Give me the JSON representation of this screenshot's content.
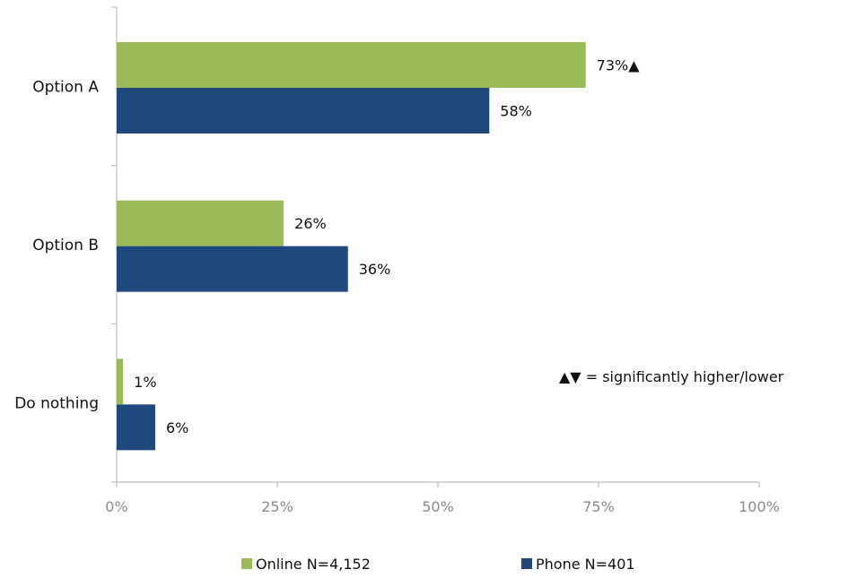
{
  "chart_data": {
    "type": "bar",
    "orientation": "horizontal",
    "categories": [
      "Option A",
      "Option B",
      "Do nothing"
    ],
    "series": [
      {
        "name": "Online N=4,152",
        "color": "#9bbb59",
        "values": [
          73,
          26,
          1
        ],
        "labels": [
          "73%▲",
          "26%",
          "1%"
        ]
      },
      {
        "name": "Phone N=401",
        "color": "#1f497d",
        "values": [
          58,
          36,
          6
        ],
        "labels": [
          "58%",
          "36%",
          "6%"
        ]
      }
    ],
    "xlim": [
      0,
      100
    ],
    "xticks": [
      0,
      25,
      50,
      75,
      100
    ],
    "xtick_labels": [
      "0%",
      "25%",
      "50%",
      "75%",
      "100%"
    ],
    "grid": false,
    "legend_position": "bottom",
    "annotation": "▲▼ = significantly higher/lower"
  }
}
